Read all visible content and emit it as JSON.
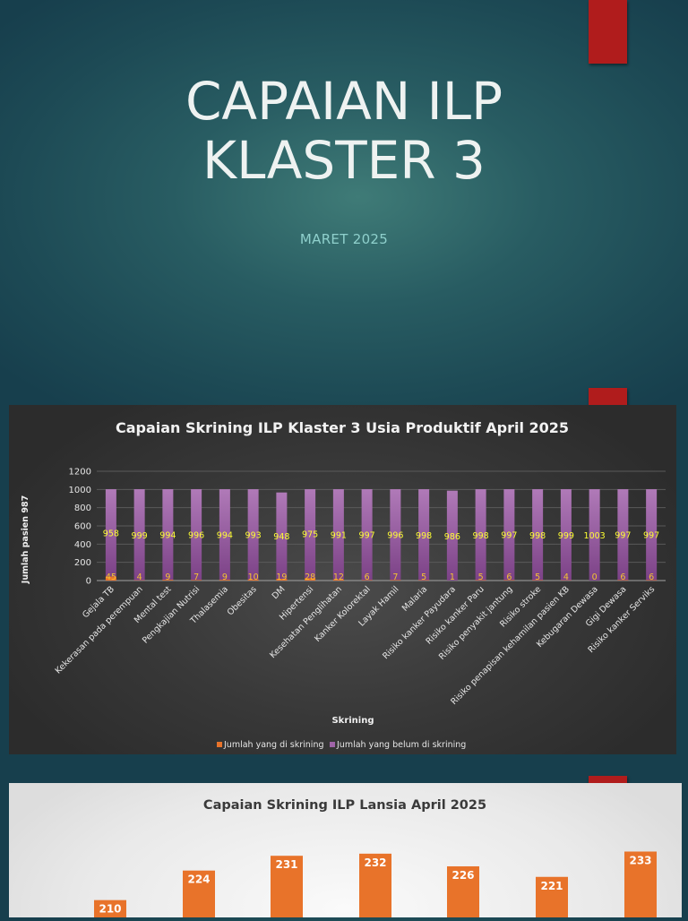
{
  "slide": {
    "title_line1": "CAPAIAN ILP",
    "title_line2": "KLASTER 3",
    "subtitle": "MARET 2025"
  },
  "colors": {
    "accent_red": "#b01c1c",
    "series_screened": "#e8732a",
    "series_unscreened": "#a064a8",
    "data_label": "#ffff33"
  },
  "chart_data": [
    {
      "type": "bar",
      "stacked": true,
      "title": "Capaian Skrining ILP Klaster 3 Usia Produktif April 2025",
      "xlabel": "Skrining",
      "ylabel": "Jumlah pasien 987",
      "ylim": [
        0,
        1200
      ],
      "yticks": [
        0,
        200,
        400,
        600,
        800,
        1000,
        1200
      ],
      "grid": true,
      "legend_position": "bottom",
      "categories": [
        "Gejala TB",
        "Kekerasan pada perempuan",
        "Mental test",
        "Pengkajian Nutrisi",
        "Thalasemia",
        "Obesitas",
        "DM",
        "Hipertensi",
        "Kesehatan Penglihatan",
        "Kanker Kolorektal",
        "Layak Hamil",
        "Malaria",
        "Risiko kanker Payudara",
        "Risiko kanker Paru",
        "Risiko penyakit jantung",
        "Risiko stroke",
        "Risiko penapisan kehamilan pasien KB",
        "Kebugaran Dewasa",
        "Gigi Dewasa",
        "Risiko kanker Serviks"
      ],
      "series": [
        {
          "name": "Jumlah yang di skrining",
          "values": [
            45,
            4,
            9,
            7,
            9,
            10,
            19,
            28,
            12,
            6,
            7,
            5,
            1,
            5,
            6,
            5,
            4,
            0,
            6,
            6
          ]
        },
        {
          "name": "Jumlah yang belum di skrining",
          "values": [
            958,
            999,
            994,
            996,
            994,
            993,
            948,
            975,
            991,
            997,
            996,
            998,
            986,
            998,
            997,
            998,
            999,
            1003,
            997,
            997
          ]
        }
      ]
    },
    {
      "type": "bar",
      "title": "Capaian Skrining ILP Lansia April 2025",
      "visible_values": [
        210,
        224,
        231,
        232,
        226,
        221,
        233
      ]
    }
  ]
}
